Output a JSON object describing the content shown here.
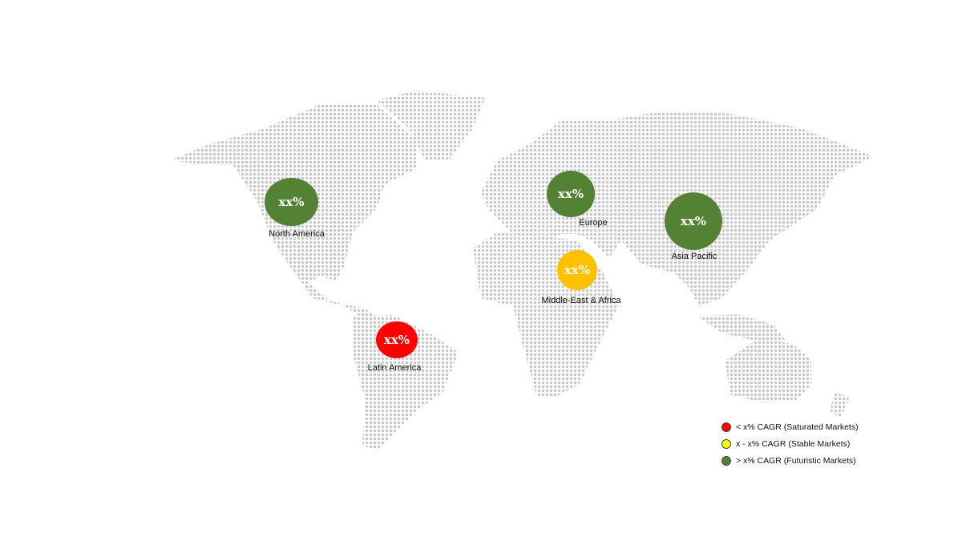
{
  "colors": {
    "saturated": "#ff0000",
    "stable": "#ffff00",
    "futuristic": "#548235",
    "bubble_yellow": "#ffc000",
    "map_dots": "#c8c8c8"
  },
  "regions": [
    {
      "name": "North America",
      "value": "xx%",
      "category": "futuristic"
    },
    {
      "name": "Europe",
      "value": "xx%",
      "category": "futuristic"
    },
    {
      "name": "Asia Pacific",
      "value": "xx%",
      "category": "futuristic"
    },
    {
      "name": "Middle-East & Africa",
      "value": "xx%",
      "category": "stable"
    },
    {
      "name": "Latin America",
      "value": "xx%",
      "category": "saturated"
    }
  ],
  "legend": [
    {
      "label": "< x% CAGR (Saturated Markets)",
      "color": "#ff0000"
    },
    {
      "label": "x - x% CAGR (Stable Markets)",
      "color": "#ffff00"
    },
    {
      "label": "> x% CAGR (Futuristic Markets)",
      "color": "#548235"
    }
  ]
}
